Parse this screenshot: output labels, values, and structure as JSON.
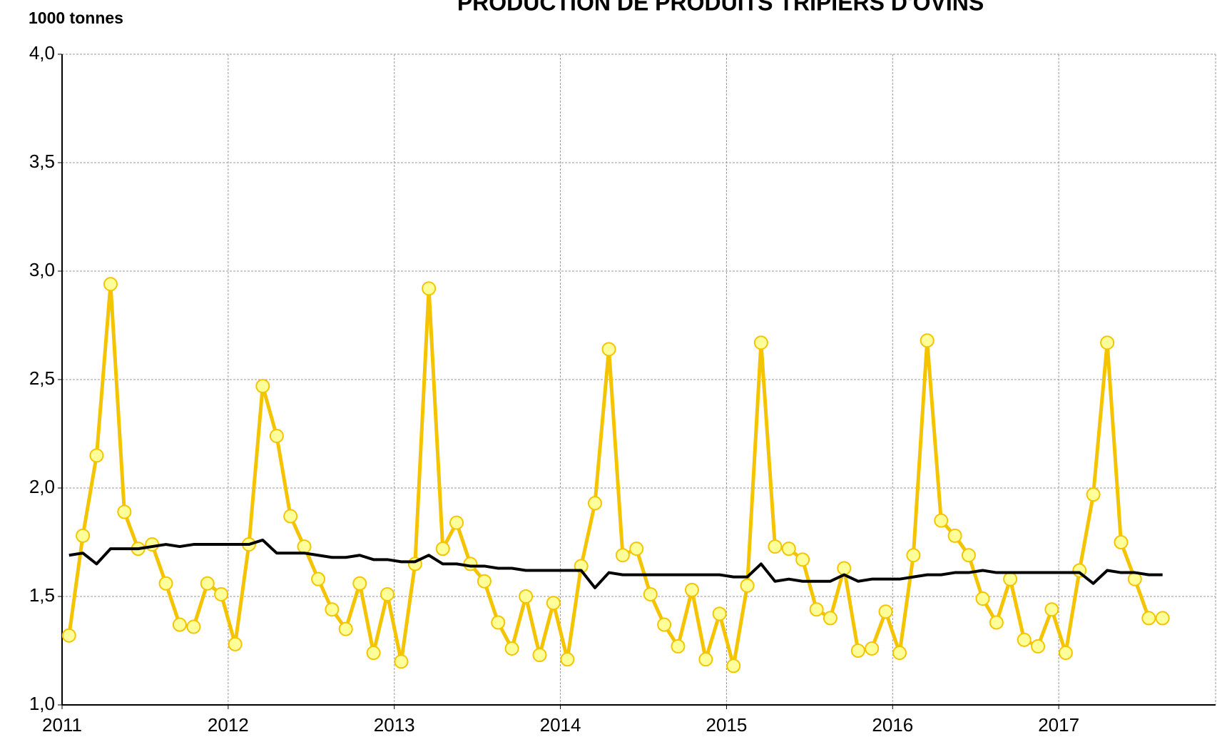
{
  "chart_data": {
    "type": "line",
    "title": "PRODUCTION DE PRODUITS TRIPIERS D'OVINS",
    "y_label": "1000 tonnes",
    "x": [
      2011.042,
      2011.125,
      2011.208,
      2011.292,
      2011.375,
      2011.458,
      2011.542,
      2011.625,
      2011.708,
      2011.792,
      2011.875,
      2011.958,
      2012.042,
      2012.125,
      2012.208,
      2012.292,
      2012.375,
      2012.458,
      2012.542,
      2012.625,
      2012.708,
      2012.792,
      2012.875,
      2012.958,
      2013.042,
      2013.125,
      2013.208,
      2013.292,
      2013.375,
      2013.458,
      2013.542,
      2013.625,
      2013.708,
      2013.792,
      2013.875,
      2013.958,
      2014.042,
      2014.125,
      2014.208,
      2014.292,
      2014.375,
      2014.458,
      2014.542,
      2014.625,
      2014.708,
      2014.792,
      2014.875,
      2014.958,
      2015.042,
      2015.125,
      2015.208,
      2015.292,
      2015.375,
      2015.458,
      2015.542,
      2015.625,
      2015.708,
      2015.792,
      2015.875,
      2015.958,
      2016.042,
      2016.125,
      2016.208,
      2016.292,
      2016.375,
      2016.458,
      2016.542,
      2016.625,
      2016.708,
      2016.792,
      2016.875,
      2016.958,
      2017.042,
      2017.125,
      2017.208,
      2017.292,
      2017.375,
      2017.458,
      2017.542,
      2017.625
    ],
    "series": [
      {
        "color": "#f5c400",
        "marker_fill": "#ffff99",
        "markers": true,
        "values": [
          1.32,
          1.78,
          2.15,
          2.94,
          1.89,
          1.72,
          1.74,
          1.56,
          1.37,
          1.36,
          1.56,
          1.51,
          1.28,
          1.74,
          2.47,
          2.24,
          1.87,
          1.73,
          1.58,
          1.44,
          1.35,
          1.56,
          1.24,
          1.51,
          1.2,
          1.65,
          2.92,
          1.72,
          1.84,
          1.65,
          1.57,
          1.38,
          1.26,
          1.5,
          1.23,
          1.47,
          1.21,
          1.64,
          1.93,
          2.64,
          1.69,
          1.72,
          1.51,
          1.37,
          1.27,
          1.53,
          1.21,
          1.42,
          1.18,
          1.55,
          2.67,
          1.73,
          1.72,
          1.67,
          1.44,
          1.4,
          1.63,
          1.25,
          1.26,
          1.43,
          1.24,
          1.69,
          2.68,
          1.85,
          1.78,
          1.69,
          1.49,
          1.38,
          1.58,
          1.3,
          1.27,
          1.44,
          1.24,
          1.62,
          1.97,
          2.67,
          1.75,
          1.58,
          1.4,
          1.4
        ]
      },
      {
        "color": "#000000",
        "markers": false,
        "values": [
          1.69,
          1.7,
          1.65,
          1.72,
          1.72,
          1.72,
          1.73,
          1.74,
          1.73,
          1.74,
          1.74,
          1.74,
          1.74,
          1.74,
          1.76,
          1.7,
          1.7,
          1.7,
          1.69,
          1.68,
          1.68,
          1.69,
          1.67,
          1.67,
          1.66,
          1.66,
          1.69,
          1.65,
          1.65,
          1.64,
          1.64,
          1.63,
          1.63,
          1.62,
          1.62,
          1.62,
          1.62,
          1.62,
          1.54,
          1.61,
          1.6,
          1.6,
          1.6,
          1.6,
          1.6,
          1.6,
          1.6,
          1.6,
          1.59,
          1.59,
          1.65,
          1.57,
          1.58,
          1.57,
          1.57,
          1.57,
          1.6,
          1.57,
          1.58,
          1.58,
          1.58,
          1.59,
          1.6,
          1.6,
          1.61,
          1.61,
          1.62,
          1.61,
          1.61,
          1.61,
          1.61,
          1.61,
          1.61,
          1.61,
          1.56,
          1.62,
          1.61,
          1.61,
          1.6,
          1.6
        ]
      }
    ],
    "xlim": [
      2011,
      2018
    ],
    "xticks": [
      2011,
      2012,
      2013,
      2014,
      2015,
      2016,
      2017
    ],
    "ylim": [
      1,
      4
    ],
    "yticks": [
      {
        "value": 1,
        "label": "1,0"
      },
      {
        "value": 1.5,
        "label": "1,5"
      },
      {
        "value": 2,
        "label": "2,0"
      },
      {
        "value": 2.5,
        "label": "2,5"
      },
      {
        "value": 3,
        "label": "3,0"
      },
      {
        "value": 3.5,
        "label": "3,5"
      },
      {
        "value": 4,
        "label": "4,0"
      }
    ],
    "grid": true
  }
}
